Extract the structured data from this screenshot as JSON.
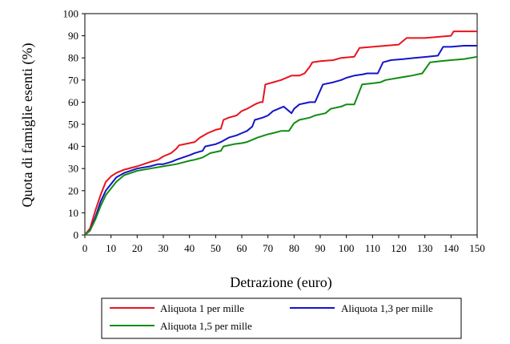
{
  "chart_data": {
    "type": "line",
    "xlabel": "Detrazione (euro)",
    "ylabel": "Quota di famiglie esenti (%)",
    "xlim": [
      0,
      150
    ],
    "ylim": [
      0,
      100
    ],
    "xticks": [
      0,
      10,
      20,
      30,
      40,
      50,
      60,
      70,
      80,
      90,
      100,
      110,
      120,
      130,
      140,
      150
    ],
    "yticks": [
      0,
      10,
      20,
      30,
      40,
      50,
      60,
      70,
      80,
      90,
      100
    ],
    "grid": false,
    "legend_position": "bottom",
    "series": [
      {
        "name": "Aliquota 1 per mille",
        "color": "#e8141e",
        "points": [
          [
            0,
            0
          ],
          [
            2,
            3
          ],
          [
            4,
            11
          ],
          [
            6,
            18
          ],
          [
            8,
            24
          ],
          [
            10,
            26.5
          ],
          [
            12,
            28
          ],
          [
            15,
            29.5
          ],
          [
            20,
            31
          ],
          [
            25,
            33
          ],
          [
            28,
            34
          ],
          [
            30,
            35.5
          ],
          [
            33,
            37
          ],
          [
            35,
            39
          ],
          [
            36,
            40.5
          ],
          [
            40,
            41.5
          ],
          [
            42,
            42
          ],
          [
            44,
            44
          ],
          [
            47,
            46
          ],
          [
            50,
            47.5
          ],
          [
            52,
            48
          ],
          [
            53,
            52
          ],
          [
            55,
            53
          ],
          [
            58,
            54
          ],
          [
            60,
            56
          ],
          [
            62,
            57
          ],
          [
            65,
            59
          ],
          [
            67,
            60
          ],
          [
            68,
            60
          ],
          [
            69,
            68
          ],
          [
            72,
            69
          ],
          [
            75,
            70
          ],
          [
            79,
            72
          ],
          [
            82,
            72
          ],
          [
            84,
            73
          ],
          [
            86,
            76
          ],
          [
            87,
            78
          ],
          [
            90,
            78.5
          ],
          [
            95,
            79
          ],
          [
            98,
            80
          ],
          [
            103,
            80.5
          ],
          [
            105,
            84.5
          ],
          [
            110,
            85
          ],
          [
            115,
            85.5
          ],
          [
            120,
            86
          ],
          [
            123,
            89
          ],
          [
            130,
            89
          ],
          [
            135,
            89.5
          ],
          [
            140,
            90
          ],
          [
            141,
            92
          ],
          [
            150,
            92
          ]
        ]
      },
      {
        "name": "Aliquota 1,3 per mille",
        "color": "#1414c8",
        "points": [
          [
            0,
            0
          ],
          [
            2,
            2
          ],
          [
            4,
            8
          ],
          [
            6,
            15
          ],
          [
            8,
            20
          ],
          [
            10,
            23
          ],
          [
            12,
            26
          ],
          [
            15,
            28
          ],
          [
            20,
            30
          ],
          [
            25,
            31
          ],
          [
            28,
            32
          ],
          [
            30,
            32
          ],
          [
            33,
            33
          ],
          [
            35,
            34
          ],
          [
            40,
            36
          ],
          [
            42,
            37
          ],
          [
            45,
            38
          ],
          [
            46,
            40
          ],
          [
            50,
            41
          ],
          [
            52,
            42
          ],
          [
            55,
            44
          ],
          [
            58,
            45
          ],
          [
            60,
            46
          ],
          [
            62,
            47
          ],
          [
            64,
            49
          ],
          [
            65,
            52
          ],
          [
            68,
            53
          ],
          [
            70,
            54
          ],
          [
            72,
            56
          ],
          [
            76,
            58
          ],
          [
            79,
            55
          ],
          [
            80,
            57
          ],
          [
            82,
            59
          ],
          [
            86,
            60
          ],
          [
            88,
            60
          ],
          [
            91,
            68
          ],
          [
            95,
            69
          ],
          [
            98,
            70
          ],
          [
            100,
            71
          ],
          [
            103,
            72
          ],
          [
            106,
            72.5
          ],
          [
            108,
            73
          ],
          [
            112,
            73
          ],
          [
            114,
            78
          ],
          [
            117,
            79
          ],
          [
            122,
            79.5
          ],
          [
            126,
            80
          ],
          [
            131,
            80.5
          ],
          [
            135,
            81
          ],
          [
            137,
            85
          ],
          [
            140,
            85
          ],
          [
            145,
            85.5
          ],
          [
            150,
            85.5
          ]
        ]
      },
      {
        "name": "Aliquota 1,5 per mille",
        "color": "#128c14",
        "points": [
          [
            0,
            0
          ],
          [
            2,
            2
          ],
          [
            4,
            7
          ],
          [
            6,
            13
          ],
          [
            8,
            18
          ],
          [
            10,
            21
          ],
          [
            12,
            24
          ],
          [
            15,
            27
          ],
          [
            20,
            29
          ],
          [
            25,
            30
          ],
          [
            30,
            31
          ],
          [
            35,
            32
          ],
          [
            40,
            33.5
          ],
          [
            42,
            34
          ],
          [
            45,
            35
          ],
          [
            48,
            37
          ],
          [
            52,
            38
          ],
          [
            53,
            40
          ],
          [
            57,
            41
          ],
          [
            60,
            41.5
          ],
          [
            62,
            42
          ],
          [
            64,
            43
          ],
          [
            66,
            44
          ],
          [
            70,
            45.5
          ],
          [
            72,
            46
          ],
          [
            75,
            47
          ],
          [
            78,
            47
          ],
          [
            80,
            50.5
          ],
          [
            82,
            52
          ],
          [
            86,
            53
          ],
          [
            88,
            54
          ],
          [
            92,
            55
          ],
          [
            94,
            57
          ],
          [
            98,
            58
          ],
          [
            100,
            59
          ],
          [
            103,
            59
          ],
          [
            106,
            68
          ],
          [
            110,
            68.5
          ],
          [
            113,
            69
          ],
          [
            115,
            70
          ],
          [
            120,
            71
          ],
          [
            125,
            72
          ],
          [
            129,
            73
          ],
          [
            132,
            78
          ],
          [
            136,
            78.5
          ],
          [
            140,
            79
          ],
          [
            145,
            79.5
          ],
          [
            150,
            80.5
          ]
        ]
      }
    ]
  }
}
